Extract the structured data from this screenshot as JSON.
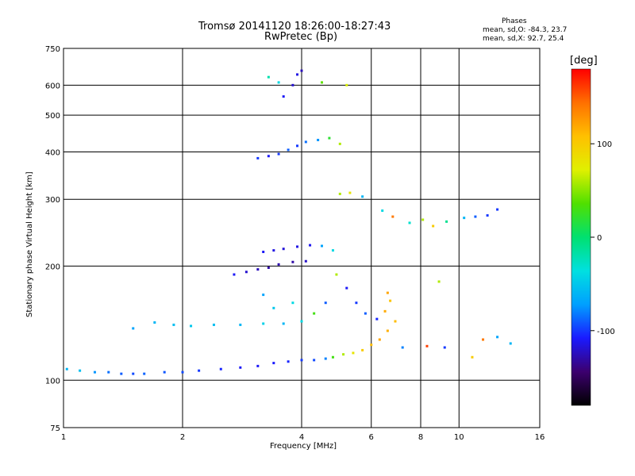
{
  "header": {
    "title_line1": "Tromsø 20141120 18:26:00-18:27:43",
    "title_line2": "RwPretec (Bp)",
    "phases_heading": "Phases",
    "phases_o": "mean, sd,O: -84.3, 23.7",
    "phases_x": "mean, sd,X: 92.7, 25.4"
  },
  "colorbar": {
    "unit": "[deg]",
    "ticks": [
      {
        "value": 100,
        "label": "100"
      },
      {
        "value": 0,
        "label": "0"
      },
      {
        "value": -100,
        "label": "-100"
      }
    ],
    "range": [
      -180,
      180
    ],
    "colors": [
      "#000000",
      "#3c006e",
      "#1a1aff",
      "#00a0ff",
      "#00e0e0",
      "#00e070",
      "#50e000",
      "#e0f000",
      "#ffc000",
      "#ff7000",
      "#ff0000"
    ]
  },
  "chart_data": {
    "type": "scatter",
    "title": "Tromsø 20141120 18:26:00-18:27:43",
    "subtitle": "RwPretec (Bp)",
    "xlabel": "Frequency [MHz]",
    "ylabel": "Stationary phase Virtual Height [km]",
    "xscale": "log",
    "yscale": "log",
    "xlim": [
      1,
      16
    ],
    "ylim": [
      75,
      750
    ],
    "xticks": [
      {
        "value": 1,
        "label": "1"
      },
      {
        "value": 2,
        "label": "2"
      },
      {
        "value": 4,
        "label": "4"
      },
      {
        "value": 6,
        "label": "6"
      },
      {
        "value": 8,
        "label": "8"
      },
      {
        "value": 10,
        "label": "10"
      },
      {
        "value": 16,
        "label": "16"
      }
    ],
    "yticks": [
      {
        "value": 75,
        "label": "75"
      },
      {
        "value": 100,
        "label": "100"
      },
      {
        "value": 200,
        "label": "200"
      },
      {
        "value": 300,
        "label": "300"
      },
      {
        "value": 400,
        "label": "400"
      },
      {
        "value": 500,
        "label": "500"
      },
      {
        "value": 600,
        "label": "600"
      },
      {
        "value": 750,
        "label": "750"
      }
    ],
    "grid": true,
    "color_axis": "phase [deg]",
    "series": [
      {
        "points": [
          [
            1.02,
            107,
            -60
          ],
          [
            1.1,
            106,
            -55
          ],
          [
            1.2,
            105,
            -75
          ],
          [
            1.3,
            105,
            -85
          ],
          [
            1.4,
            104,
            -90
          ],
          [
            1.5,
            104,
            -95
          ],
          [
            1.6,
            104,
            -88
          ],
          [
            1.8,
            105,
            -92
          ],
          [
            2.0,
            105,
            -95
          ],
          [
            2.2,
            106,
            -100
          ],
          [
            2.5,
            107,
            -105
          ],
          [
            2.8,
            108,
            -110
          ],
          [
            3.1,
            109,
            -110
          ],
          [
            3.4,
            111,
            -108
          ],
          [
            3.7,
            112,
            -105
          ],
          [
            4.0,
            113,
            -100
          ],
          [
            4.3,
            113,
            -95
          ],
          [
            4.6,
            114,
            -80
          ]
        ]
      },
      {
        "points": [
          [
            4.8,
            115,
            30
          ],
          [
            5.1,
            117,
            60
          ],
          [
            5.4,
            118,
            80
          ],
          [
            5.7,
            120,
            100
          ],
          [
            6.0,
            124,
            110
          ],
          [
            6.3,
            128,
            120
          ],
          [
            6.6,
            135,
            115
          ],
          [
            6.9,
            143,
            110
          ],
          [
            6.5,
            152,
            118
          ],
          [
            6.7,
            162,
            105
          ],
          [
            6.6,
            170,
            120
          ]
        ]
      },
      {
        "points": [
          [
            2.7,
            190,
            -110
          ],
          [
            2.9,
            193,
            -120
          ],
          [
            3.1,
            196,
            -125
          ],
          [
            3.3,
            198,
            -130
          ],
          [
            3.5,
            202,
            -128
          ],
          [
            3.8,
            205,
            -130
          ],
          [
            4.1,
            206,
            -122
          ]
        ]
      },
      {
        "points": [
          [
            3.2,
            218,
            -110
          ],
          [
            3.4,
            220,
            -115
          ],
          [
            3.6,
            222,
            -118
          ],
          [
            3.9,
            225,
            -115
          ],
          [
            4.2,
            227,
            -112
          ],
          [
            4.5,
            226,
            -70
          ],
          [
            4.8,
            220,
            -40
          ]
        ]
      },
      {
        "points": [
          [
            1.5,
            137,
            -70
          ],
          [
            1.7,
            142,
            -60
          ],
          [
            1.9,
            140,
            -55
          ],
          [
            2.1,
            139,
            -50
          ],
          [
            2.4,
            140,
            -55
          ],
          [
            2.8,
            140,
            -60
          ],
          [
            3.2,
            141,
            -45
          ],
          [
            3.6,
            141,
            -60
          ],
          [
            4.0,
            143,
            -40
          ]
        ]
      },
      {
        "points": [
          [
            3.1,
            385,
            -100
          ],
          [
            3.3,
            390,
            -110
          ],
          [
            3.5,
            395,
            -100
          ],
          [
            3.7,
            405,
            -90
          ],
          [
            3.9,
            415,
            -100
          ],
          [
            4.1,
            425,
            -85
          ],
          [
            4.4,
            430,
            -75
          ],
          [
            4.7,
            435,
            20
          ],
          [
            5.0,
            420,
            60
          ]
        ]
      },
      {
        "points": [
          [
            3.6,
            560,
            -110
          ],
          [
            3.8,
            600,
            -120
          ],
          [
            3.9,
            640,
            -115
          ],
          [
            4.0,
            655,
            -125
          ],
          [
            3.3,
            630,
            -20
          ],
          [
            3.5,
            610,
            -40
          ],
          [
            4.5,
            610,
            40
          ],
          [
            5.2,
            600,
            70
          ]
        ]
      },
      {
        "points": [
          [
            5.0,
            310,
            60
          ],
          [
            5.3,
            312,
            80
          ],
          [
            5.7,
            305,
            -60
          ],
          [
            6.4,
            280,
            -40
          ],
          [
            6.8,
            270,
            140
          ],
          [
            7.5,
            260,
            -30
          ],
          [
            8.1,
            265,
            60
          ],
          [
            8.6,
            255,
            100
          ],
          [
            9.3,
            262,
            -10
          ],
          [
            10.3,
            268,
            -60
          ],
          [
            11.0,
            270,
            -90
          ],
          [
            11.8,
            272,
            -100
          ],
          [
            12.5,
            282,
            -100
          ]
        ]
      },
      {
        "points": [
          [
            7.2,
            122,
            -80
          ],
          [
            8.3,
            123,
            160
          ],
          [
            9.2,
            122,
            -100
          ],
          [
            8.9,
            182,
            60
          ],
          [
            10.8,
            115,
            100
          ],
          [
            11.5,
            128,
            140
          ],
          [
            12.5,
            130,
            -70
          ],
          [
            13.5,
            125,
            -60
          ]
        ]
      },
      {
        "points": [
          [
            4.9,
            190,
            60
          ],
          [
            5.2,
            175,
            -110
          ],
          [
            5.5,
            160,
            -100
          ],
          [
            5.8,
            150,
            -90
          ],
          [
            6.2,
            145,
            -105
          ],
          [
            4.6,
            160,
            -90
          ],
          [
            4.3,
            150,
            30
          ],
          [
            3.8,
            160,
            -40
          ],
          [
            3.4,
            155,
            -50
          ],
          [
            3.2,
            168,
            -70
          ]
        ]
      }
    ]
  }
}
